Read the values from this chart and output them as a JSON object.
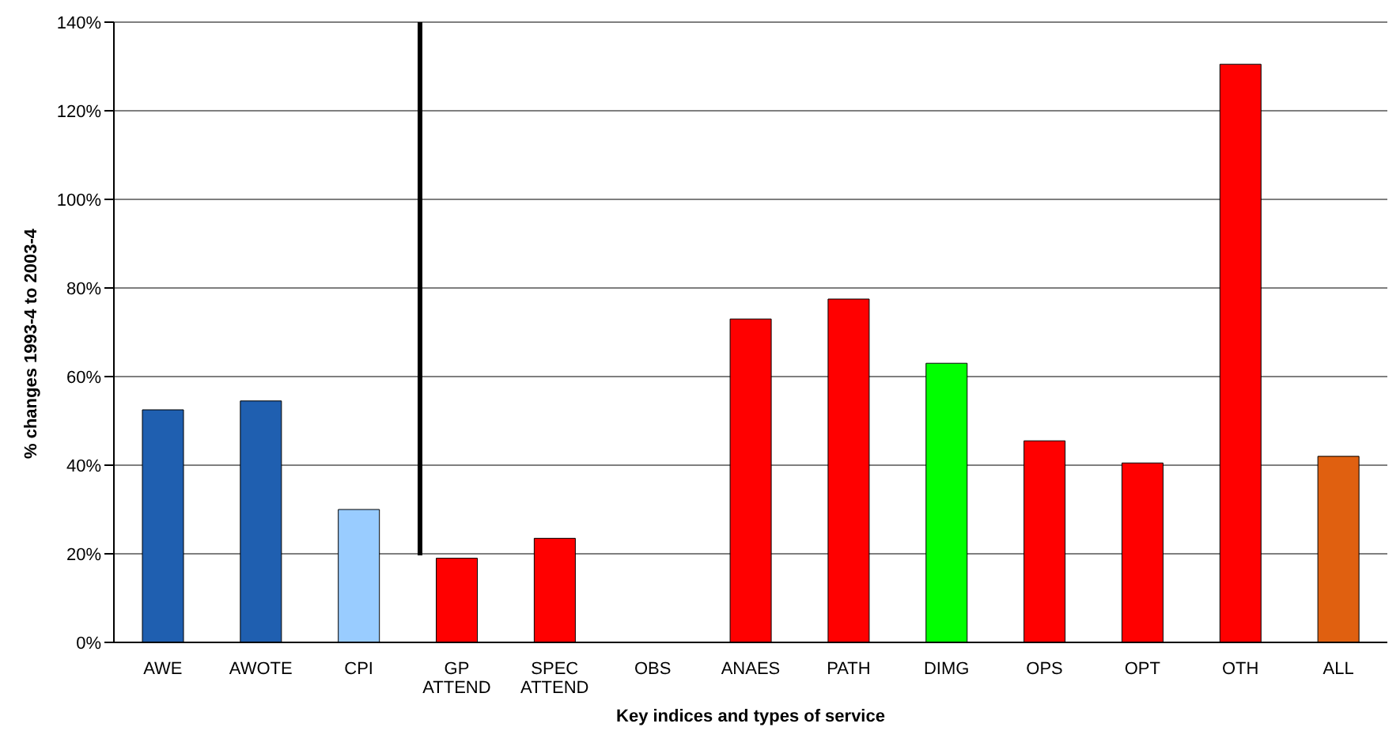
{
  "chart_data": {
    "type": "bar",
    "xlabel": "Key indices and types of service",
    "ylabel": "% changes 1993-4 to 2003-4",
    "categories": [
      "AWE",
      "AWOTE",
      "CPI",
      "GP ATTEND",
      "SPEC ATTEND",
      "OBS",
      "ANAES",
      "PATH",
      "DIMG",
      "OPS",
      "OPT",
      "OTH",
      "ALL"
    ],
    "values": [
      52.5,
      54.5,
      30,
      19,
      23.5,
      null,
      73,
      77.5,
      63,
      45.5,
      40.5,
      130.5,
      42
    ],
    "colors": [
      "#1f5fb0",
      "#1f5fb0",
      "#99ccff",
      "#ff0000",
      "#ff0000",
      "#ff0000",
      "#ff0000",
      "#ff0000",
      "#00ff00",
      "#ff0000",
      "#ff0000",
      "#ff0000",
      "#e06010"
    ],
    "ylim": [
      0,
      140
    ],
    "yticks": [
      {
        "value": 0,
        "label": "0%"
      },
      {
        "value": 20,
        "label": "20%"
      },
      {
        "value": 40,
        "label": "40%"
      },
      {
        "value": 60,
        "label": "60%"
      },
      {
        "value": 80,
        "label": "80%"
      },
      {
        "value": 100,
        "label": "100%"
      },
      {
        "value": 120,
        "label": "120%"
      },
      {
        "value": 140,
        "label": "140%"
      }
    ],
    "grid": "y"
  }
}
